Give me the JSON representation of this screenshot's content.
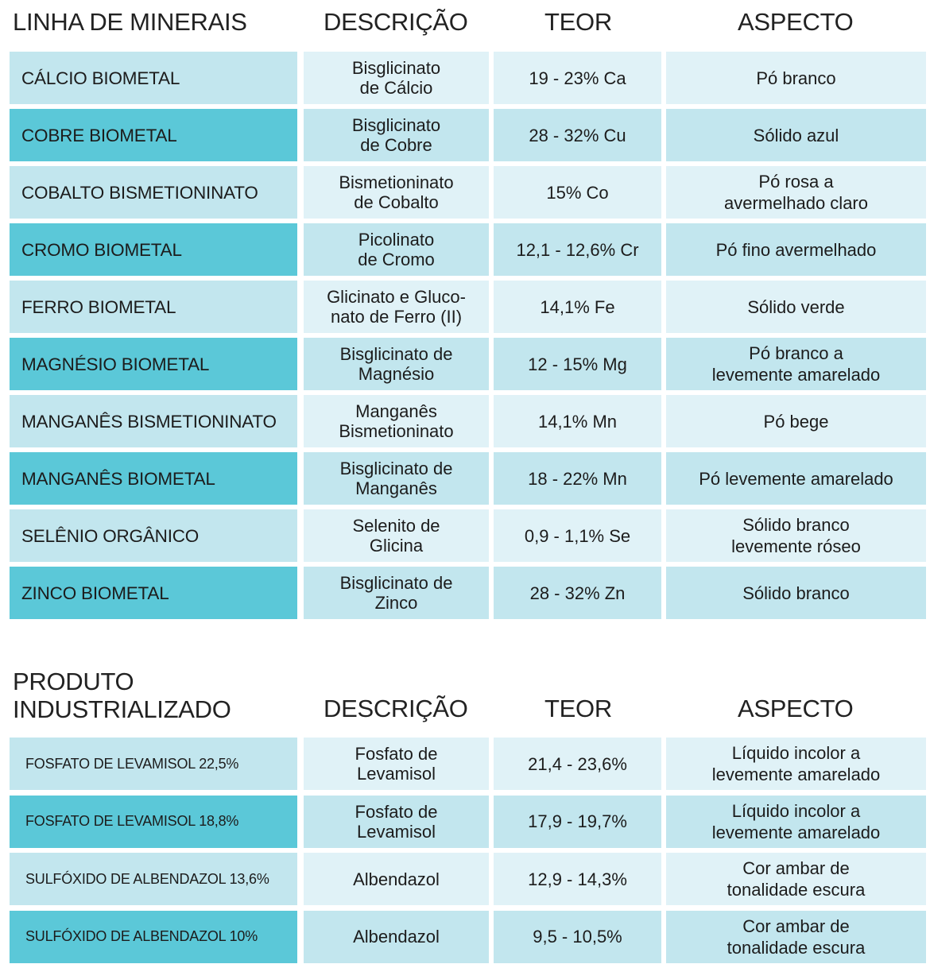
{
  "minerals": {
    "headers": {
      "name": "LINHA DE MINERAIS",
      "description": "DESCRIÇÃO",
      "content": "TEOR",
      "aspect": "ASPECTO"
    },
    "rows": [
      {
        "name": "CÁLCIO BIOMETAL",
        "description": "Bisglicinato\nde Cálcio",
        "content": "19 - 23% Ca",
        "aspect": "Pó branco"
      },
      {
        "name": "COBRE BIOMETAL",
        "description": "Bisglicinato\nde Cobre",
        "content": "28 - 32% Cu",
        "aspect": "Sólido azul"
      },
      {
        "name": "COBALTO BISMETIONINATO",
        "description": "Bismetioninato\nde Cobalto",
        "content": "15% Co",
        "aspect": "Pó rosa a\navermelhado claro"
      },
      {
        "name": "CROMO BIOMETAL",
        "description": "Picolinato\nde Cromo",
        "content": "12,1 - 12,6% Cr",
        "aspect": "Pó fino avermelhado"
      },
      {
        "name": "FERRO BIOMETAL",
        "description": "Glicinato e Gluco-\nnato de Ferro (II)",
        "content": "14,1% Fe",
        "aspect": "Sólido verde"
      },
      {
        "name": "MAGNÉSIO BIOMETAL",
        "description": "Bisglicinato de\nMagnésio",
        "content": "12 - 15% Mg",
        "aspect": "Pó branco a\nlevemente amarelado"
      },
      {
        "name": "MANGANÊS BISMETIONINATO",
        "description": "Manganês\nBismetioninato",
        "content": "14,1% Mn",
        "aspect": "Pó bege"
      },
      {
        "name": "MANGANÊS BIOMETAL",
        "description": "Bisglicinato de\nManganês",
        "content": "18 - 22% Mn",
        "aspect": "Pó levemente amarelado"
      },
      {
        "name": "SELÊNIO ORGÂNICO",
        "description": "Selenito de\nGlicina",
        "content": "0,9 - 1,1% Se",
        "aspect": "Sólido branco\nlevemente róseo"
      },
      {
        "name": "ZINCO BIOMETAL",
        "description": "Bisglicinato de\nZinco",
        "content": "28 - 32% Zn",
        "aspect": "Sólido branco"
      }
    ]
  },
  "industrial": {
    "headers": {
      "name": "PRODUTO\nINDUSTRIALIZADO",
      "description": "DESCRIÇÃO",
      "content": "TEOR",
      "aspect": "ASPECTO"
    },
    "rows": [
      {
        "name": "FOSFATO DE LEVAMISOL 22,5%",
        "description": "Fosfato de\nLevamisol",
        "content": "21,4 - 23,6%",
        "aspect": "Líquido incolor a\nlevemente amarelado"
      },
      {
        "name": "FOSFATO DE LEVAMISOL 18,8%",
        "description": "Fosfato de\nLevamisol",
        "content": "17,9 - 19,7%",
        "aspect": "Líquido incolor a\nlevemente amarelado"
      },
      {
        "name": "SULFÓXIDO DE ALBENDAZOL 13,6%",
        "description": "Albendazol",
        "content": "12,9 - 14,3%",
        "aspect": "Cor ambar de\ntonalidade escura"
      },
      {
        "name": "SULFÓXIDO DE ALBENDAZOL 10%",
        "description": "Albendazol",
        "content": "9,5 - 10,5%",
        "aspect": "Cor ambar de\ntonalidade escura"
      }
    ]
  },
  "colors": {
    "accent_dark": "#5bc8d8",
    "accent_mid": "#c2e6ee",
    "accent_light": "#e0f2f7"
  }
}
